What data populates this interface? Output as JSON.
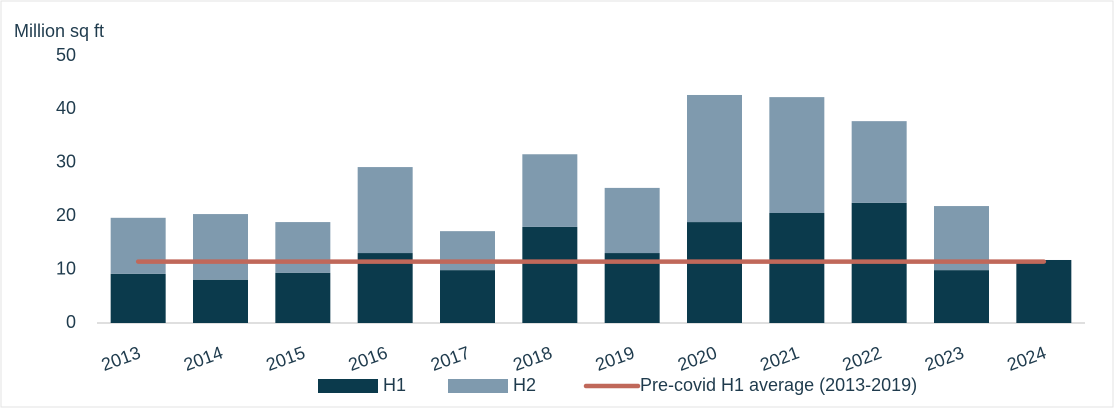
{
  "chart_data": {
    "type": "bar",
    "stacked": true,
    "ylabel": "Million sq ft",
    "categories": [
      "2013",
      "2014",
      "2015",
      "2016",
      "2017",
      "2018",
      "2019",
      "2020",
      "2021",
      "2022",
      "2023",
      "2024"
    ],
    "series": [
      {
        "name": "H1",
        "color": "#0b3a4c",
        "values": [
          9.2,
          8.1,
          9.4,
          13.1,
          9.9,
          18.0,
          13.1,
          18.9,
          20.6,
          22.5,
          9.9,
          11.8
        ]
      },
      {
        "name": "H2",
        "color": "#7f9aae",
        "values": [
          10.5,
          12.3,
          9.5,
          16.1,
          7.3,
          13.6,
          12.2,
          23.8,
          21.7,
          15.3,
          12.0,
          null
        ]
      },
      {
        "name": "Pre-covid H1 average (2013-2019)",
        "color": "#c0685a",
        "type": "line",
        "values": [
          11.5,
          11.5,
          11.5,
          11.5,
          11.5,
          11.5,
          11.5,
          11.5,
          11.5,
          11.5,
          11.5,
          11.5
        ]
      }
    ],
    "ylim": [
      0,
      50
    ],
    "yticks": [
      0,
      10,
      20,
      30,
      40,
      50
    ],
    "grid": false,
    "legend": "bottom"
  }
}
